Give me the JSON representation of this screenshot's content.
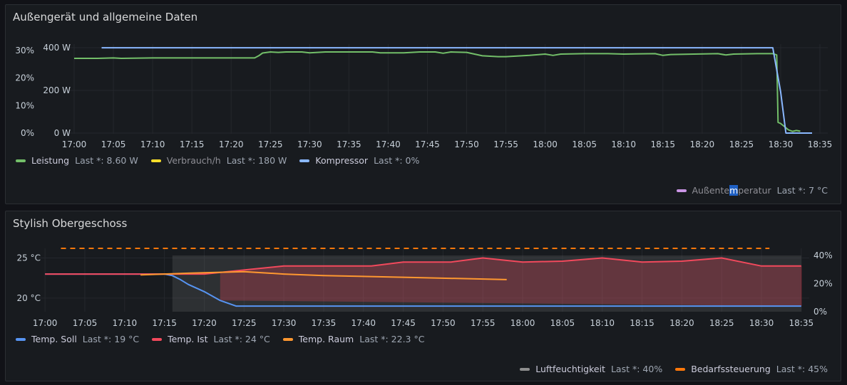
{
  "chart_data": [
    {
      "type": "line",
      "title": "Außengerät und allgemeine Daten",
      "x_ticks": [
        "17:00",
        "17:05",
        "17:10",
        "17:15",
        "17:20",
        "17:25",
        "17:30",
        "17:35",
        "17:40",
        "17:45",
        "17:50",
        "17:55",
        "18:00",
        "18:05",
        "18:10",
        "18:15",
        "18:20",
        "18:25",
        "18:30",
        "18:35"
      ],
      "xlim": [
        "16:59",
        "18:36"
      ],
      "y_left": {
        "unit": "W",
        "range": [
          0,
          400
        ],
        "ticks": [
          "0 W",
          "200 W",
          "400 W"
        ]
      },
      "y_left2": {
        "unit": "%",
        "range": [
          0,
          30
        ],
        "ticks": [
          "0%",
          "10%",
          "20%",
          "30%"
        ]
      },
      "grid": true,
      "series": [
        {
          "name": "Leistung",
          "axis": "W",
          "color": "#73bf69",
          "legend_value": "Last *: 8.60 W",
          "points": [
            [
              "17:00",
              350
            ],
            [
              "17:03",
              350
            ],
            [
              "17:05",
              352
            ],
            [
              "17:06",
              350
            ],
            [
              "17:10",
              352
            ],
            [
              "17:15",
              352
            ],
            [
              "17:20",
              352
            ],
            [
              "17:23",
              352
            ],
            [
              "17:23:30",
              362
            ],
            [
              "17:24",
              375
            ],
            [
              "17:25",
              380
            ],
            [
              "17:26",
              378
            ],
            [
              "17:27",
              380
            ],
            [
              "17:29",
              380
            ],
            [
              "17:30",
              376
            ],
            [
              "17:32",
              380
            ],
            [
              "17:35",
              380
            ],
            [
              "17:38",
              380
            ],
            [
              "17:39",
              376
            ],
            [
              "17:42",
              376
            ],
            [
              "17:44",
              380
            ],
            [
              "17:46",
              380
            ],
            [
              "17:47",
              374
            ],
            [
              "17:48",
              380
            ],
            [
              "17:50",
              378
            ],
            [
              "17:51",
              370
            ],
            [
              "17:52",
              362
            ],
            [
              "17:54",
              358
            ],
            [
              "17:55",
              358
            ],
            [
              "17:58",
              364
            ],
            [
              "18:00",
              370
            ],
            [
              "18:01",
              364
            ],
            [
              "18:02",
              370
            ],
            [
              "18:05",
              372
            ],
            [
              "18:08",
              372
            ],
            [
              "18:10",
              370
            ],
            [
              "18:14",
              372
            ],
            [
              "18:15",
              364
            ],
            [
              "18:16",
              368
            ],
            [
              "18:19",
              370
            ],
            [
              "18:22",
              372
            ],
            [
              "18:23",
              366
            ],
            [
              "18:24",
              370
            ],
            [
              "18:27",
              372
            ],
            [
              "18:29",
              372
            ],
            [
              "18:29:30",
              366
            ],
            [
              "18:29:40",
              50
            ],
            [
              "18:30",
              45
            ],
            [
              "18:30:30",
              30
            ],
            [
              "18:31",
              15
            ],
            [
              "18:31:30",
              8
            ],
            [
              "18:32",
              12
            ],
            [
              "18:32:30",
              8.6
            ]
          ]
        },
        {
          "name": "Verbrauch/h",
          "axis": "W",
          "color": "#fade2a",
          "legend_value": "Last *: 180 W",
          "hidden": true
        },
        {
          "name": "Kompressor",
          "axis": "%",
          "color": "#8ab8ff",
          "legend_value": "Last *: 0%",
          "points": [
            [
              "17:03:30",
              31
            ],
            [
              "18:29",
              31
            ],
            [
              "18:30",
              15
            ],
            [
              "18:30:40",
              0
            ],
            [
              "18:34",
              0
            ]
          ]
        },
        {
          "name": "Außentemperatur",
          "color": "#ca95e5",
          "legend_value": "Last *: 7 °C",
          "hidden": true
        }
      ]
    },
    {
      "type": "line",
      "title": "Stylish Obergeschoss",
      "x_ticks": [
        "17:00",
        "17:05",
        "17:10",
        "17:15",
        "17:20",
        "17:25",
        "17:30",
        "17:35",
        "17:40",
        "17:45",
        "17:50",
        "17:55",
        "18:00",
        "18:05",
        "18:10",
        "18:15",
        "18:20",
        "18:25",
        "18:30",
        "18:35"
      ],
      "xlim": [
        "16:59",
        "18:36"
      ],
      "y_left": {
        "unit": "°C",
        "range": [
          18.3,
          26.2
        ],
        "ticks": [
          "20 °C",
          "25 °C"
        ]
      },
      "y_right": {
        "unit": "%",
        "range": [
          0,
          45
        ],
        "ticks": [
          "0%",
          "20%",
          "40%"
        ]
      },
      "grid": true,
      "series": [
        {
          "name": "Temp. Soll",
          "axis": "°C",
          "color": "#5794f2",
          "legend_value": "Last *: 19 °C",
          "points": [
            [
              "17:00",
              23
            ],
            [
              "17:15",
              23
            ],
            [
              "17:16",
              22.8
            ],
            [
              "17:17",
              22.3
            ],
            [
              "17:18",
              21.7
            ],
            [
              "17:20",
              20.8
            ],
            [
              "17:22",
              19.7
            ],
            [
              "17:24",
              19
            ],
            [
              "18:35",
              19
            ]
          ]
        },
        {
          "name": "Temp. Ist",
          "axis": "°C",
          "color": "#f2495c",
          "legend_value": "Last *: 24 °C",
          "points": [
            [
              "17:00",
              23
            ],
            [
              "17:20",
              23
            ],
            [
              "17:25",
              23.5
            ],
            [
              "17:30",
              24
            ],
            [
              "17:41",
              24
            ],
            [
              "17:45",
              24.5
            ],
            [
              "17:51",
              24.5
            ],
            [
              "17:55",
              25
            ],
            [
              "18:00",
              24.5
            ],
            [
              "18:05",
              24.6
            ],
            [
              "18:10",
              25
            ],
            [
              "18:15",
              24.5
            ],
            [
              "18:20",
              24.6
            ],
            [
              "18:25",
              25
            ],
            [
              "18:30",
              24
            ],
            [
              "18:35",
              24
            ]
          ]
        },
        {
          "name": "Temp. Raum",
          "axis": "°C",
          "color": "#ff9830",
          "legend_value": "Last *: 22.3 °C",
          "points": [
            [
              "17:12",
              22.9
            ],
            [
              "17:18",
              23.1
            ],
            [
              "17:25",
              23.3
            ],
            [
              "17:30",
              23
            ],
            [
              "17:35",
              22.8
            ],
            [
              "17:45",
              22.6
            ],
            [
              "17:58",
              22.3
            ]
          ]
        },
        {
          "name": "Luftfeuchtigkeit",
          "axis": "%",
          "color": "#8e8e8e",
          "legend_value": "Last *: 40%",
          "shaded": true
        },
        {
          "name": "Bedarfssteuerung",
          "axis": "%",
          "color": "#ff780a",
          "legend_value": "Last *: 45%",
          "dashed_constant": 45
        }
      ]
    }
  ]
}
